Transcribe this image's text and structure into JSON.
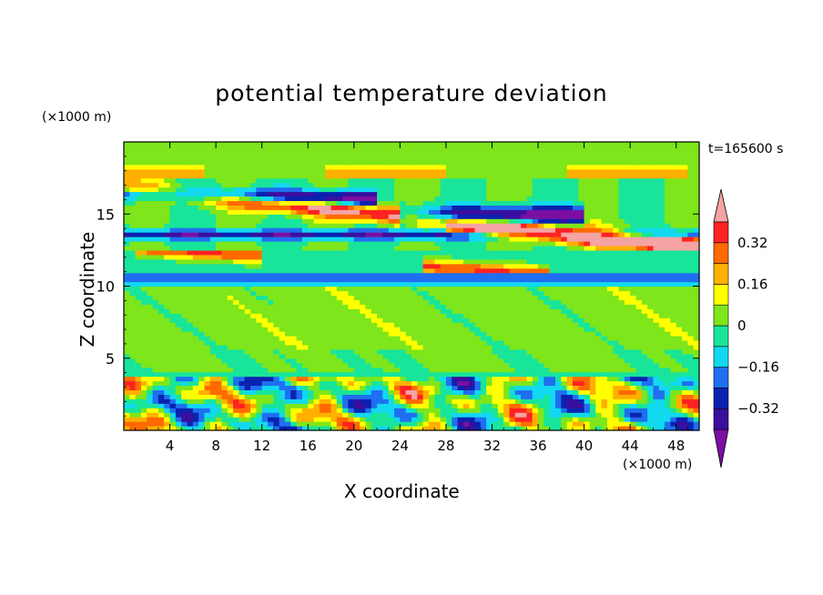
{
  "chart_data": {
    "type": "heatmap",
    "title": "potential temperature deviation",
    "xlabel": "X coordinate",
    "ylabel": "Z coordinate",
    "x_unit": "(×1000 m)",
    "y_unit": "(×1000 m)",
    "time_label": "t=165600 s",
    "xlim": [
      0,
      50
    ],
    "ylim": [
      0,
      20
    ],
    "x_ticks": [
      4,
      8,
      12,
      16,
      20,
      24,
      28,
      32,
      36,
      40,
      44,
      48
    ],
    "y_ticks": [
      5,
      10,
      15
    ],
    "colorbar": {
      "levels": [
        -0.48,
        -0.4,
        -0.32,
        -0.24,
        -0.16,
        -0.08,
        0,
        0.08,
        0.16,
        0.24,
        0.32,
        0.4
      ],
      "tick_labels": [
        {
          "value": 0.32,
          "text": "0.32"
        },
        {
          "value": 0.16,
          "text": "0.16"
        },
        {
          "value": 0,
          "text": "0"
        },
        {
          "value": -0.16,
          "text": "−0.16"
        },
        {
          "value": -0.32,
          "text": "−0.32"
        }
      ],
      "colors": [
        "#7b0ea3",
        "#3a0f9e",
        "#0a22b0",
        "#1f6ff0",
        "#12d8f0",
        "#18e59a",
        "#7ee61a",
        "#ffff00",
        "#ffb000",
        "#ff6a00",
        "#ff2222",
        "#f5a3a3"
      ]
    },
    "features": [
      {
        "x": [
          0,
          50
        ],
        "z": [
          3.7,
          3.7
        ],
        "value": -0.1,
        "note": ""
      },
      {
        "x": [
          0,
          50
        ],
        "z": [
          10.5,
          10.5
        ],
        "value": -0.2,
        "note": ""
      }
    ]
  }
}
